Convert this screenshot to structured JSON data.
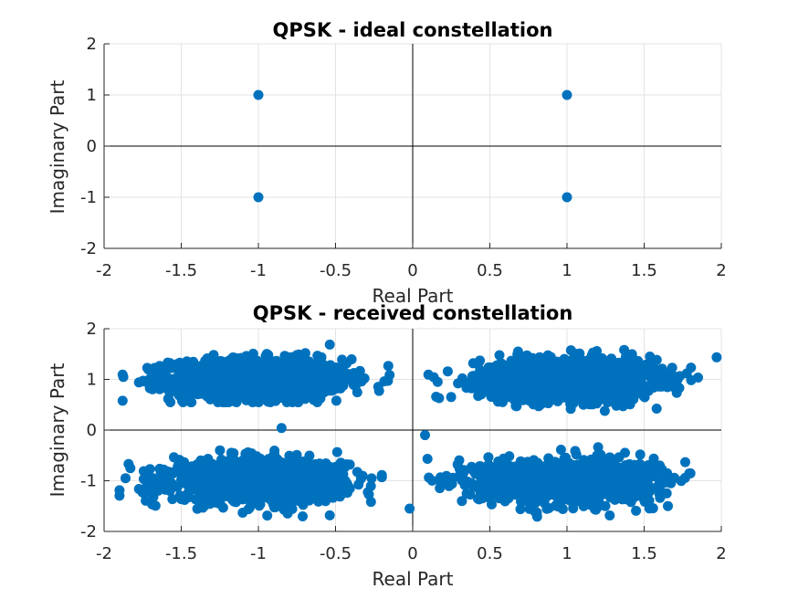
{
  "chart_data": [
    {
      "type": "scatter",
      "title": "QPSK - ideal constellation",
      "xlabel": "Real Part",
      "ylabel": "Imaginary Part",
      "xlim": [
        -2,
        2
      ],
      "ylim": [
        -2,
        2
      ],
      "xticks": [
        "-2",
        "-1.5",
        "-1",
        "-0.5",
        "0",
        "0.5",
        "1",
        "1.5",
        "2"
      ],
      "yticks": [
        "-2",
        "-1",
        "0",
        "1",
        "2"
      ],
      "grid": true,
      "color": "#0072BD",
      "points": [
        [
          -1,
          1
        ],
        [
          1,
          1
        ],
        [
          -1,
          -1
        ],
        [
          1,
          -1
        ]
      ]
    },
    {
      "type": "scatter",
      "title": "QPSK - received constellation",
      "xlabel": "Real Part",
      "ylabel": "Imaginary Part",
      "xlim": [
        -2,
        2
      ],
      "ylim": [
        -2,
        2
      ],
      "xticks": [
        "-2",
        "-1.5",
        "-1",
        "-0.5",
        "0",
        "0.5",
        "1",
        "1.5",
        "2"
      ],
      "yticks": [
        "-2",
        "-1",
        "0",
        "1",
        "2"
      ],
      "grid": true,
      "color": "#0072BD",
      "clusters": [
        {
          "center": [
            -1,
            1
          ],
          "spread_x": 0.28,
          "spread_y": 0.2,
          "x_range": [
            -1.88,
            -0.15
          ],
          "y_range": [
            0.55,
            1.72
          ]
        },
        {
          "center": [
            1,
            1
          ],
          "spread_x": 0.28,
          "spread_y": 0.2,
          "x_range": [
            0.1,
            1.97
          ],
          "y_range": [
            0.3,
            1.95
          ]
        },
        {
          "center": [
            -1,
            -1
          ],
          "spread_x": 0.28,
          "spread_y": 0.2,
          "x_range": [
            -1.9,
            -0.2
          ],
          "y_range": [
            -1.88,
            -0.3
          ]
        },
        {
          "center": [
            1,
            -1
          ],
          "spread_x": 0.28,
          "spread_y": 0.2,
          "x_range": [
            0.05,
            1.8
          ],
          "y_range": [
            -1.85,
            -0.25
          ]
        }
      ],
      "outliers": [
        [
          -0.02,
          -1.55
        ],
        [
          0.08,
          -0.1
        ],
        [
          -0.85,
          0.04
        ]
      ]
    }
  ]
}
